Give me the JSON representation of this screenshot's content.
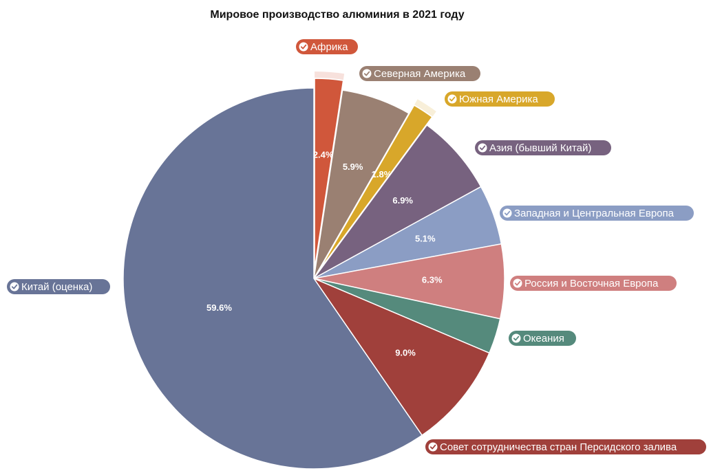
{
  "chart_data": {
    "type": "pie",
    "title": "Мировое производство алюминия в 2021 году",
    "slices": [
      {
        "label": "Африка",
        "value": 2.4,
        "value_label": "2.4%",
        "color": "#d0573b",
        "exploded": true
      },
      {
        "label": "Северная Америка",
        "value": 5.9,
        "value_label": "5.9%",
        "color": "#9a8072",
        "exploded": false
      },
      {
        "label": "Южная Америка",
        "value": 1.8,
        "value_label": "1.8%",
        "color": "#d8a72a",
        "exploded": true
      },
      {
        "label": "Азия (бывший Китай)",
        "value": 6.9,
        "value_label": "6.9%",
        "color": "#77627f",
        "exploded": false
      },
      {
        "label": "Западная и Центральная Европа",
        "value": 5.1,
        "value_label": "5.1%",
        "color": "#8b9dc4",
        "exploded": false
      },
      {
        "label": "Россия и Восточная Европа",
        "value": 6.3,
        "value_label": "6.3%",
        "color": "#cf7f7f",
        "exploded": false
      },
      {
        "label": "Океания",
        "value": 3.0,
        "value_label": "",
        "color": "#558a7c",
        "exploded": false
      },
      {
        "label": "Совет сотрудничества стран Персидского залива",
        "value": 9.0,
        "value_label": "9.0%",
        "color": "#a0403b",
        "exploded": false
      },
      {
        "label": "Китай (оценка)",
        "value": 59.6,
        "value_label": "59.6%",
        "color": "#687497",
        "exploded": false
      }
    ],
    "legend": "labels-beside-slices"
  }
}
